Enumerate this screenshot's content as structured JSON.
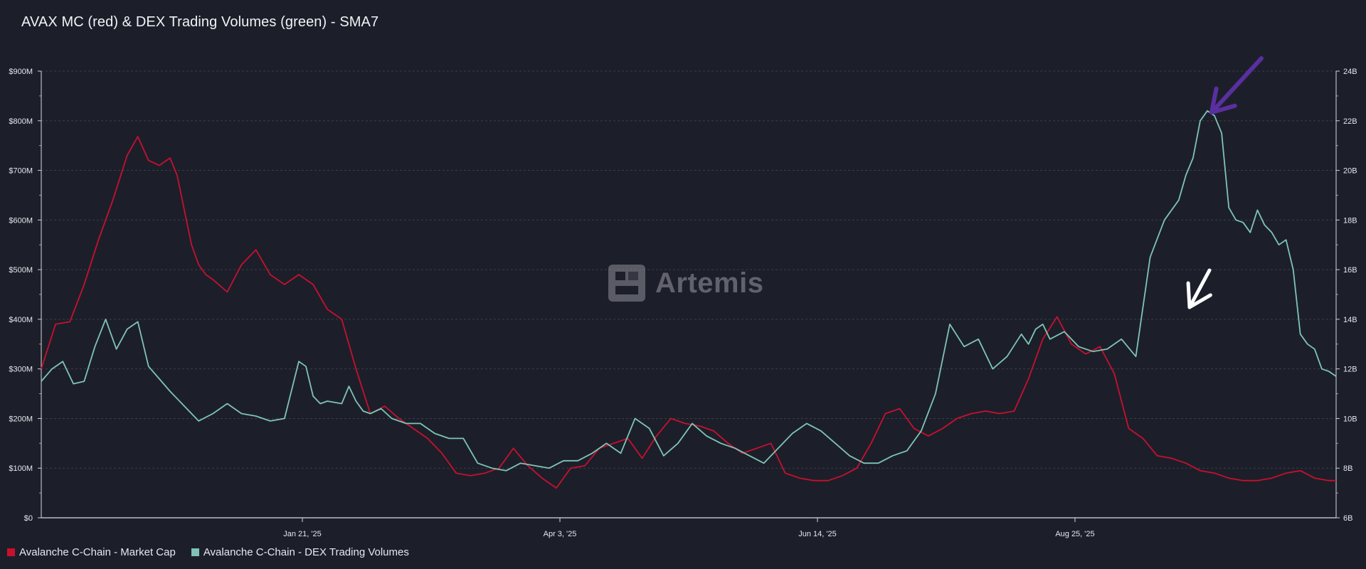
{
  "title": "AVAX MC (red) & DEX Trading Volumes (green) - SMA7",
  "watermark": "Artemis",
  "colors": {
    "market_cap": "#c8102e",
    "dex_volume": "#7fc4b6",
    "purple_arrow": "#5a2fa0",
    "white_arrow": "#ffffff",
    "grid": "#3a3e4a"
  },
  "legend": [
    {
      "label": "Avalanche C-Chain - Market Cap",
      "color": "#c8102e"
    },
    {
      "label": "Avalanche C-Chain - DEX Trading Volumes",
      "color": "#7fc4b6"
    }
  ],
  "chart_data": {
    "type": "line",
    "title": "AVAX MC (red) & DEX Trading Volumes (green) - SMA7",
    "x_ticks": [
      "Jan 21, '25",
      "Apr 3, '25",
      "Jun 14, '25",
      "Aug 25, '25"
    ],
    "x_tick_days": [
      73,
      145,
      217,
      289
    ],
    "x_range_days": [
      0,
      362
    ],
    "y_left": {
      "ticks": [
        "$0",
        "$100M",
        "$200M",
        "$300M",
        "$400M",
        "$500M",
        "$600M",
        "$700M",
        "$800M",
        "$900M"
      ],
      "range": [
        0,
        900
      ],
      "unit": "$M"
    },
    "y_right": {
      "ticks": [
        "6B",
        "8B",
        "10B",
        "12B",
        "14B",
        "16B",
        "18B",
        "20B",
        "22B",
        "24B"
      ],
      "range": [
        6,
        24
      ],
      "unit": "B"
    },
    "grid": true,
    "legend_position": "bottom-left",
    "series": [
      {
        "name": "Avalanche C-Chain - Market Cap",
        "axis": "left",
        "color": "#c8102e",
        "x": [
          0,
          4,
          8,
          12,
          16,
          20,
          24,
          27,
          30,
          33,
          36,
          38,
          40,
          42,
          44,
          46,
          48,
          52,
          56,
          60,
          64,
          68,
          72,
          76,
          80,
          84,
          88,
          92,
          96,
          100,
          104,
          108,
          112,
          116,
          120,
          124,
          128,
          132,
          136,
          140,
          144,
          148,
          152,
          156,
          160,
          164,
          168,
          172,
          176,
          180,
          184,
          188,
          192,
          196,
          200,
          204,
          208,
          212,
          216,
          220,
          224,
          228,
          232,
          236,
          240,
          244,
          248,
          252,
          256,
          260,
          264,
          268,
          272,
          276,
          280,
          284,
          288,
          292,
          296,
          300,
          304,
          308,
          312,
          316,
          320,
          324,
          328,
          332,
          336,
          340,
          344,
          348,
          352,
          356,
          360,
          362
        ],
        "y": [
          300,
          390,
          395,
          470,
          560,
          640,
          730,
          768,
          720,
          710,
          725,
          690,
          620,
          550,
          510,
          490,
          480,
          455,
          510,
          540,
          490,
          470,
          490,
          470,
          420,
          400,
          300,
          210,
          225,
          200,
          180,
          160,
          130,
          90,
          85,
          90,
          100,
          140,
          105,
          80,
          60,
          100,
          105,
          140,
          150,
          160,
          120,
          165,
          200,
          190,
          185,
          175,
          150,
          130,
          140,
          150,
          90,
          80,
          75,
          75,
          85,
          100,
          150,
          210,
          220,
          180,
          165,
          180,
          200,
          210,
          215,
          210,
          215,
          280,
          360,
          405,
          350,
          330,
          345,
          290,
          180,
          160,
          125,
          120,
          110,
          95,
          90,
          80,
          75,
          75,
          80,
          90,
          95,
          80,
          75,
          75
        ]
      },
      {
        "name": "Avalanche C-Chain - DEX Trading Volumes",
        "axis": "right",
        "color": "#7fc4b6",
        "x": [
          0,
          3,
          6,
          9,
          12,
          15,
          18,
          21,
          24,
          27,
          30,
          33,
          36,
          40,
          44,
          48,
          52,
          56,
          60,
          64,
          68,
          72,
          74,
          76,
          78,
          80,
          84,
          86,
          88,
          90,
          92,
          95,
          98,
          102,
          106,
          110,
          114,
          118,
          122,
          126,
          130,
          134,
          138,
          142,
          146,
          150,
          154,
          158,
          162,
          166,
          170,
          174,
          178,
          182,
          186,
          190,
          194,
          198,
          202,
          206,
          210,
          214,
          218,
          222,
          226,
          230,
          234,
          238,
          242,
          246,
          250,
          254,
          258,
          262,
          266,
          270,
          274,
          276,
          278,
          280,
          282,
          286,
          290,
          294,
          298,
          302,
          306,
          310,
          314,
          318,
          320,
          322,
          324,
          326,
          328,
          330,
          332,
          334,
          336,
          338,
          340,
          342,
          344,
          346,
          348,
          350,
          352,
          354,
          356,
          358,
          360,
          362
        ],
        "y": [
          11.5,
          12.0,
          12.3,
          11.4,
          11.5,
          12.9,
          14.0,
          12.8,
          13.6,
          13.9,
          12.1,
          11.6,
          11.1,
          10.5,
          9.9,
          10.2,
          10.6,
          10.2,
          10.1,
          9.9,
          10.0,
          12.3,
          12.1,
          10.9,
          10.6,
          10.7,
          10.6,
          11.3,
          10.7,
          10.3,
          10.2,
          10.4,
          10.0,
          9.8,
          9.8,
          9.4,
          9.2,
          9.2,
          8.2,
          8.0,
          7.9,
          8.2,
          8.1,
          8.0,
          8.3,
          8.3,
          8.6,
          9.0,
          8.6,
          10.0,
          9.6,
          8.5,
          9.0,
          9.8,
          9.3,
          9.0,
          8.8,
          8.5,
          8.2,
          8.8,
          9.4,
          9.8,
          9.5,
          9.0,
          8.5,
          8.2,
          8.2,
          8.5,
          8.7,
          9.5,
          11.0,
          13.8,
          12.9,
          13.2,
          12.0,
          12.5,
          13.4,
          13.0,
          13.6,
          13.8,
          13.2,
          13.5,
          12.9,
          12.7,
          12.8,
          13.2,
          12.5,
          16.5,
          18.0,
          18.8,
          19.8,
          20.5,
          22.0,
          22.4,
          22.2,
          21.5,
          18.5,
          18.0,
          17.9,
          17.5,
          18.4,
          17.8,
          17.5,
          17.0,
          17.2,
          16.0,
          13.4,
          13.0,
          12.8,
          12.0,
          11.9,
          11.7
        ]
      }
    ],
    "annotations": [
      {
        "type": "arrow",
        "color": "#5a2fa0",
        "points_to": "DEX volume peak"
      },
      {
        "type": "arrow",
        "color": "#ffffff",
        "points_to": "Market cap peak"
      }
    ]
  }
}
